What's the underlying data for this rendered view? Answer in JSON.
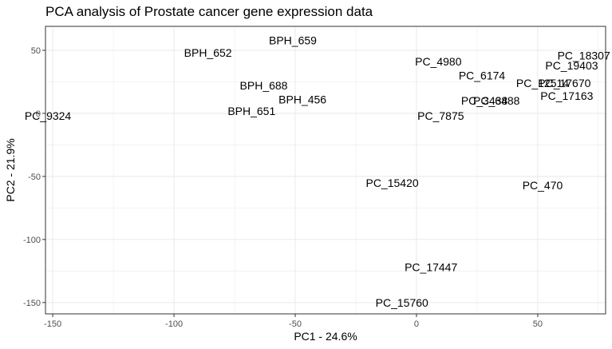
{
  "chart_data": {
    "type": "scatter",
    "title": "PCA analysis of Prostate cancer gene expression data",
    "xlabel": "PC1 - 24.6%",
    "ylabel": "PC2 - 21.9%",
    "xlim": [
      -153,
      78
    ],
    "ylim": [
      -159,
      69
    ],
    "xticks": [
      -150,
      -100,
      -50,
      0,
      50
    ],
    "yticks": [
      -150,
      -100,
      -50,
      0,
      50
    ],
    "grid": true,
    "points": [
      {
        "label": "BPH_659",
        "x": -51,
        "y": 58
      },
      {
        "label": "BPH_652",
        "x": -86,
        "y": 48
      },
      {
        "label": "BPH_688",
        "x": -63,
        "y": 22
      },
      {
        "label": "BPH_456",
        "x": -47,
        "y": 11
      },
      {
        "label": "BPH_651",
        "x": -68,
        "y": 2
      },
      {
        "label": "PC_9324",
        "x": -152,
        "y": -2
      },
      {
        "label": "PC_4980",
        "x": 9,
        "y": 41
      },
      {
        "label": "PC_6174",
        "x": 27,
        "y": 30
      },
      {
        "label": "PC_3438",
        "x": 28,
        "y": 10
      },
      {
        "label": "PC_6488",
        "x": 33,
        "y": 10
      },
      {
        "label": "PC_7875",
        "x": 10,
        "y": -2
      },
      {
        "label": "PC_12514",
        "x": 52,
        "y": 24
      },
      {
        "label": "PC_17670",
        "x": 61,
        "y": 24
      },
      {
        "label": "PC_18307",
        "x": 69,
        "y": 46
      },
      {
        "label": "PC_19403",
        "x": 64,
        "y": 38
      },
      {
        "label": "PC_17163",
        "x": 62,
        "y": 14
      },
      {
        "label": "PC_15420",
        "x": -10,
        "y": -55
      },
      {
        "label": "PC_470",
        "x": 52,
        "y": -57
      },
      {
        "label": "PC_17447",
        "x": 6,
        "y": -122
      },
      {
        "label": "PC_15760",
        "x": -6,
        "y": -150
      }
    ]
  }
}
